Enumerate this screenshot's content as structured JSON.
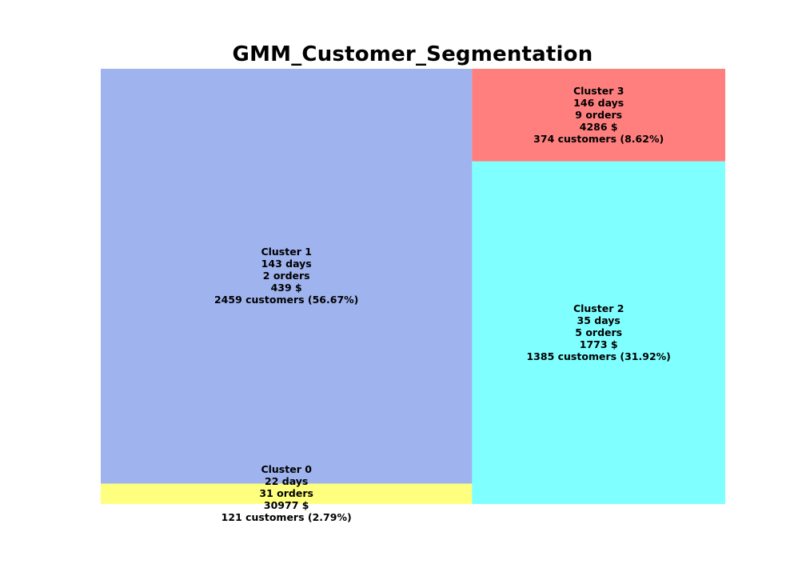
{
  "chart_data": {
    "type": "treemap",
    "title": "GMM_Customer_Segmentation",
    "grid": false,
    "axes_visible": false,
    "segments": [
      {
        "name": "Cluster 0",
        "customers": 121,
        "share_pct": 2.79,
        "color": "#ffff7f",
        "lines": [
          "Cluster 0",
          "22 days",
          "31 orders",
          "30977 $",
          "121 customers (2.79%)"
        ]
      },
      {
        "name": "Cluster 1",
        "customers": 2459,
        "share_pct": 56.67,
        "color": "#9fb3ee",
        "lines": [
          "Cluster 1",
          "143 days",
          "2 orders",
          "439 $",
          "2459 customers (56.67%)"
        ]
      },
      {
        "name": "Cluster 2",
        "customers": 1385,
        "share_pct": 31.92,
        "color": "#7fffff",
        "lines": [
          "Cluster 2",
          "35 days",
          "5 orders",
          "1773 $",
          "1385 customers (31.92%)"
        ]
      },
      {
        "name": "Cluster 3",
        "customers": 374,
        "share_pct": 8.62,
        "color": "#ff7f7f",
        "lines": [
          "Cluster 3",
          "146 days",
          "9 orders",
          "4286 $",
          "374 customers (8.62%)"
        ]
      }
    ]
  }
}
